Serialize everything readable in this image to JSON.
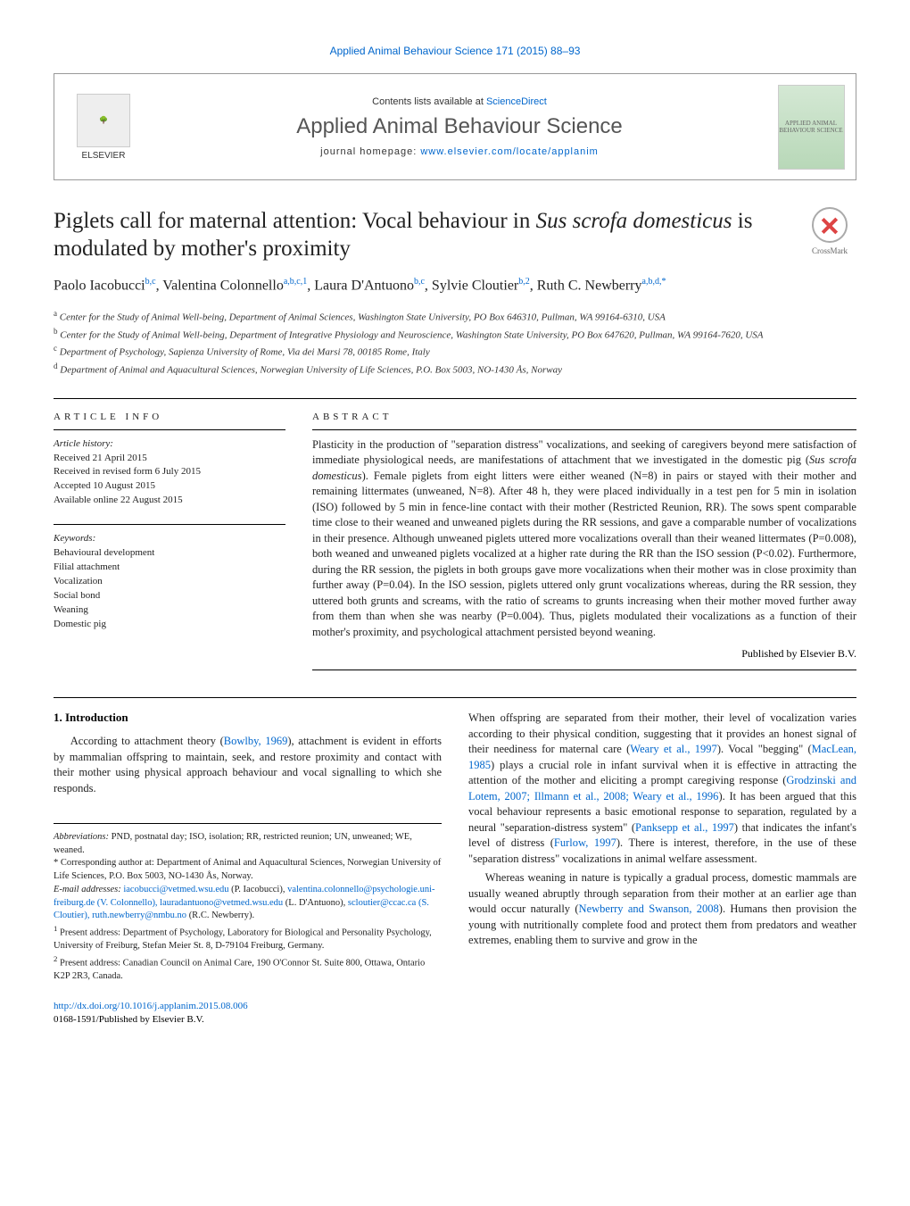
{
  "header": {
    "citation": "Applied Animal Behaviour Science 171 (2015) 88–93",
    "contents_prefix": "Contents lists available at ",
    "contents_link": "ScienceDirect",
    "journal_name": "Applied Animal Behaviour Science",
    "homepage_prefix": "journal homepage: ",
    "homepage_link": "www.elsevier.com/locate/applanim",
    "elsevier": "ELSEVIER",
    "cover_text": "APPLIED ANIMAL BEHAVIOUR SCIENCE"
  },
  "title": {
    "pre": "Piglets call for maternal attention: Vocal behaviour in ",
    "italic": "Sus scrofa domesticus",
    "post": " is modulated by mother's proximity"
  },
  "crossmark": "CrossMark",
  "authors_html": "Paolo Iacobucci<sup>b,c</sup>, Valentina Colonnello<sup>a,b,c,1</sup>, Laura D'Antuono<sup>b,c</sup>, Sylvie Cloutier<sup>b,2</sup>, Ruth C. Newberry<sup>a,b,d,*</sup>",
  "affiliations": [
    {
      "sup": "a",
      "text": "Center for the Study of Animal Well-being, Department of Animal Sciences, Washington State University, PO Box 646310, Pullman, WA 99164-6310, USA"
    },
    {
      "sup": "b",
      "text": "Center for the Study of Animal Well-being, Department of Integrative Physiology and Neuroscience, Washington State University, PO Box 647620, Pullman, WA 99164-7620, USA"
    },
    {
      "sup": "c",
      "text": "Department of Psychology, Sapienza University of Rome, Via dei Marsi 78, 00185 Rome, Italy"
    },
    {
      "sup": "d",
      "text": "Department of Animal and Aquacultural Sciences, Norwegian University of Life Sciences, P.O. Box 5003, NO-1430 Ås, Norway"
    }
  ],
  "article_info": {
    "header": "ARTICLE INFO",
    "history_label": "Article history:",
    "history": [
      "Received 21 April 2015",
      "Received in revised form 6 July 2015",
      "Accepted 10 August 2015",
      "Available online 22 August 2015"
    ],
    "keywords_label": "Keywords:",
    "keywords": [
      "Behavioural development",
      "Filial attachment",
      "Vocalization",
      "Social bond",
      "Weaning",
      "Domestic pig"
    ]
  },
  "abstract": {
    "header": "ABSTRACT",
    "text_pre": "Plasticity in the production of \"separation distress\" vocalizations, and seeking of caregivers beyond mere satisfaction of immediate physiological needs, are manifestations of attachment that we investigated in the domestic pig (",
    "text_italic": "Sus scrofa domesticus",
    "text_post": "). Female piglets from eight litters were either weaned (N=8) in pairs or stayed with their mother and remaining littermates (unweaned, N=8). After 48 h, they were placed individually in a test pen for 5 min in isolation (ISO) followed by 5 min in fence-line contact with their mother (Restricted Reunion, RR). The sows spent comparable time close to their weaned and unweaned piglets during the RR sessions, and gave a comparable number of vocalizations in their presence. Although unweaned piglets uttered more vocalizations overall than their weaned littermates (P=0.008), both weaned and unweaned piglets vocalized at a higher rate during the RR than the ISO session (P<0.02). Furthermore, during the RR session, the piglets in both groups gave more vocalizations when their mother was in close proximity than further away (P=0.04). In the ISO session, piglets uttered only grunt vocalizations whereas, during the RR session, they uttered both grunts and screams, with the ratio of screams to grunts increasing when their mother moved further away from them than when she was nearby (P=0.004). Thus, piglets modulated their vocalizations as a function of their mother's proximity, and psychological attachment persisted beyond weaning.",
    "publisher": "Published by Elsevier B.V."
  },
  "intro": {
    "header": "1. Introduction",
    "para1_pre": "According to attachment theory (",
    "para1_ref1": "Bowlby, 1969",
    "para1_post": "), attachment is evident in efforts by mammalian offspring to maintain, seek, and restore proximity and contact with their mother using physical approach behaviour and vocal signalling to which she responds.",
    "para2_pre": "When offspring are separated from their mother, their level of vocalization varies according to their physical condition, suggesting that it provides an honest signal of their neediness for maternal care (",
    "para2_ref1": "Weary et al., 1997",
    "para2_mid1": "). Vocal \"begging\" (",
    "para2_ref2": "MacLean, 1985",
    "para2_mid2": ") plays a crucial role in infant survival when it is effective in attracting the attention of the mother and eliciting a prompt caregiving response (",
    "para2_ref3": "Grodzinski and Lotem, 2007; Illmann et al., 2008; Weary et al., 1996",
    "para2_mid3": "). It has been argued that this vocal behaviour represents a basic emotional response to separation, regulated by a neural \"separation-distress system\" (",
    "para2_ref4": "Panksepp et al., 1997",
    "para2_post": ") that indicates the infant's level of distress (",
    "para2_ref5": "Furlow, 1997",
    "para2_end": "). There is interest, therefore, in the use of these \"separation distress\" vocalizations in animal welfare assessment.",
    "para3_pre": "Whereas weaning in nature is typically a gradual process, domestic mammals are usually weaned abruptly through separation from their mother at an earlier age than would occur naturally (",
    "para3_ref1": "Newberry and Swanson, 2008",
    "para3_post": "). Humans then provision the young with nutritionally complete food and protect them from predators and weather extremes, enabling them to survive and grow in the"
  },
  "footnotes": {
    "abbrev_label": "Abbreviations:",
    "abbrev": " PND, postnatal day; ISO, isolation; RR, restricted reunion; UN, unweaned; WE, weaned.",
    "corr_label": "* Corresponding author at:",
    "corr": " Department of Animal and Aquacultural Sciences, Norwegian University of Life Sciences, P.O. Box 5003, NO-1430 Ås, Norway.",
    "email_label": "E-mail addresses:",
    "emails": [
      {
        "email": "iacobucci@vetmed.wsu.edu",
        "name": " (P. Iacobucci),"
      },
      {
        "email": "valentina.colonnello@psychologie.uni-freiburg.de",
        "name": ""
      },
      {
        "email": "(V. Colonnello), lauradantuono@vetmed.wsu.edu",
        "name": " (L. D'Antuono), "
      },
      {
        "email": "scloutier@ccac.ca",
        "name": ""
      },
      {
        "email": "(S. Cloutier), ruth.newberry@nmbu.no",
        "name": " (R.C. Newberry)."
      }
    ],
    "note1_sup": "1",
    "note1": " Present address: Department of Psychology, Laboratory for Biological and Personality Psychology, University of Freiburg, Stefan Meier St. 8, D-79104 Freiburg, Germany.",
    "note2_sup": "2",
    "note2": " Present address: Canadian Council on Animal Care, 190 O'Connor St. Suite 800, Ottawa, Ontario K2P 2R3, Canada."
  },
  "footer": {
    "doi": "http://dx.doi.org/10.1016/j.applanim.2015.08.006",
    "copyright": "0168-1591/Published by Elsevier B.V."
  },
  "colors": {
    "link": "#0066cc",
    "text": "#222222",
    "border": "#000000"
  }
}
